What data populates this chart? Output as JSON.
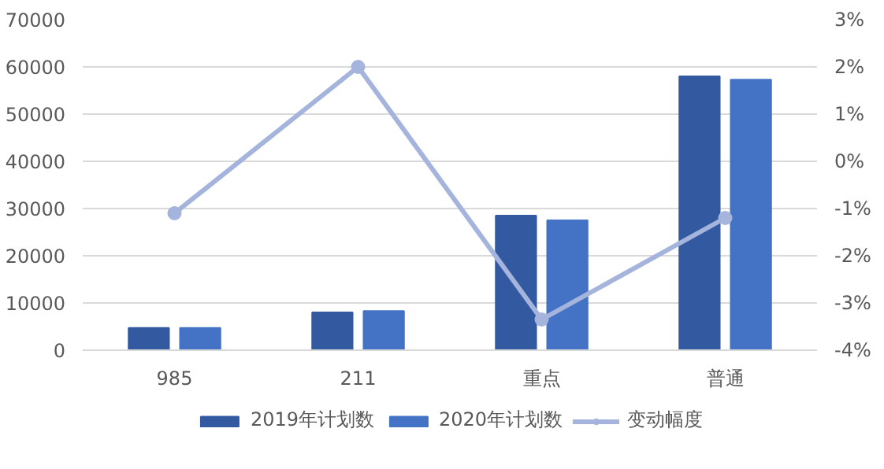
{
  "chart_data": {
    "type": "bar",
    "categories": [
      "985",
      "211",
      "重点",
      "普通"
    ],
    "series": [
      {
        "name": "2019年计划数",
        "color": "#335aa1",
        "values": [
          4700,
          8000,
          28500,
          58000
        ]
      },
      {
        "name": "2020年计划数",
        "color": "#4472c4",
        "values": [
          4700,
          8300,
          27500,
          57300
        ]
      },
      {
        "name": "变动幅度",
        "type": "line",
        "axis": "y2",
        "color": "#a5b4dc",
        "marker": "circle",
        "values": [
          -1.1,
          2.0,
          -3.35,
          -1.2
        ]
      }
    ],
    "ylim": [
      0,
      70000
    ],
    "yticks": [
      0,
      10000,
      20000,
      30000,
      40000,
      50000,
      60000,
      70000
    ],
    "y2lim": [
      -4,
      3
    ],
    "y2ticks": [
      {
        "value": -4,
        "label": "-4%"
      },
      {
        "value": -3,
        "label": "-3%"
      },
      {
        "value": -2,
        "label": "-2%"
      },
      {
        "value": -1,
        "label": "-1%"
      },
      {
        "value": 0,
        "label": "0%"
      },
      {
        "value": 1,
        "label": "1%"
      },
      {
        "value": 2,
        "label": "2%"
      },
      {
        "value": 3,
        "label": "3%"
      }
    ],
    "grid": "y",
    "legend": "bottom"
  }
}
